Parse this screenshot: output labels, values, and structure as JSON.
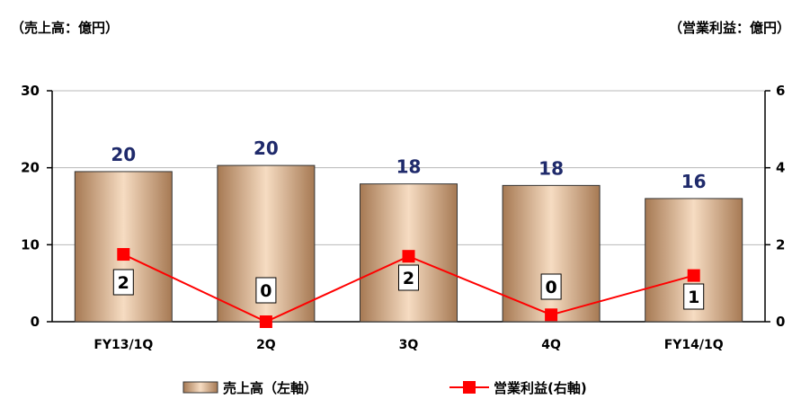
{
  "units": {
    "left": "（売上高：億円）",
    "right": "（営業利益：億円）"
  },
  "chart_data": {
    "type": "bar",
    "categories": [
      "FY13/1Q",
      "2Q",
      "3Q",
      "4Q",
      "FY14/1Q"
    ],
    "series": [
      {
        "name": "売上高（左軸）",
        "type": "bar",
        "axis": "left",
        "values": [
          19.5,
          20.3,
          17.9,
          17.7,
          16.0
        ],
        "labels": [
          "20",
          "20",
          "18",
          "18",
          "16"
        ]
      },
      {
        "name": "営業利益(右軸)",
        "type": "line",
        "axis": "right",
        "values": [
          1.75,
          0.0,
          1.7,
          0.18,
          1.2
        ],
        "labels": [
          "2",
          "0",
          "2",
          "0",
          "1"
        ]
      }
    ],
    "y_left": {
      "range": [
        0,
        30
      ],
      "ticks": [
        "0",
        "10",
        "20",
        "30"
      ]
    },
    "y_right": {
      "range": [
        0,
        6
      ],
      "ticks": [
        "0",
        "2",
        "4",
        "6"
      ]
    },
    "colors": {
      "bar_light": "#f3d8bd",
      "bar_dark": "#9c6f4c",
      "line": "#ff0000",
      "bar_label": "#1f2a6b"
    },
    "legend_position": "bottom"
  }
}
